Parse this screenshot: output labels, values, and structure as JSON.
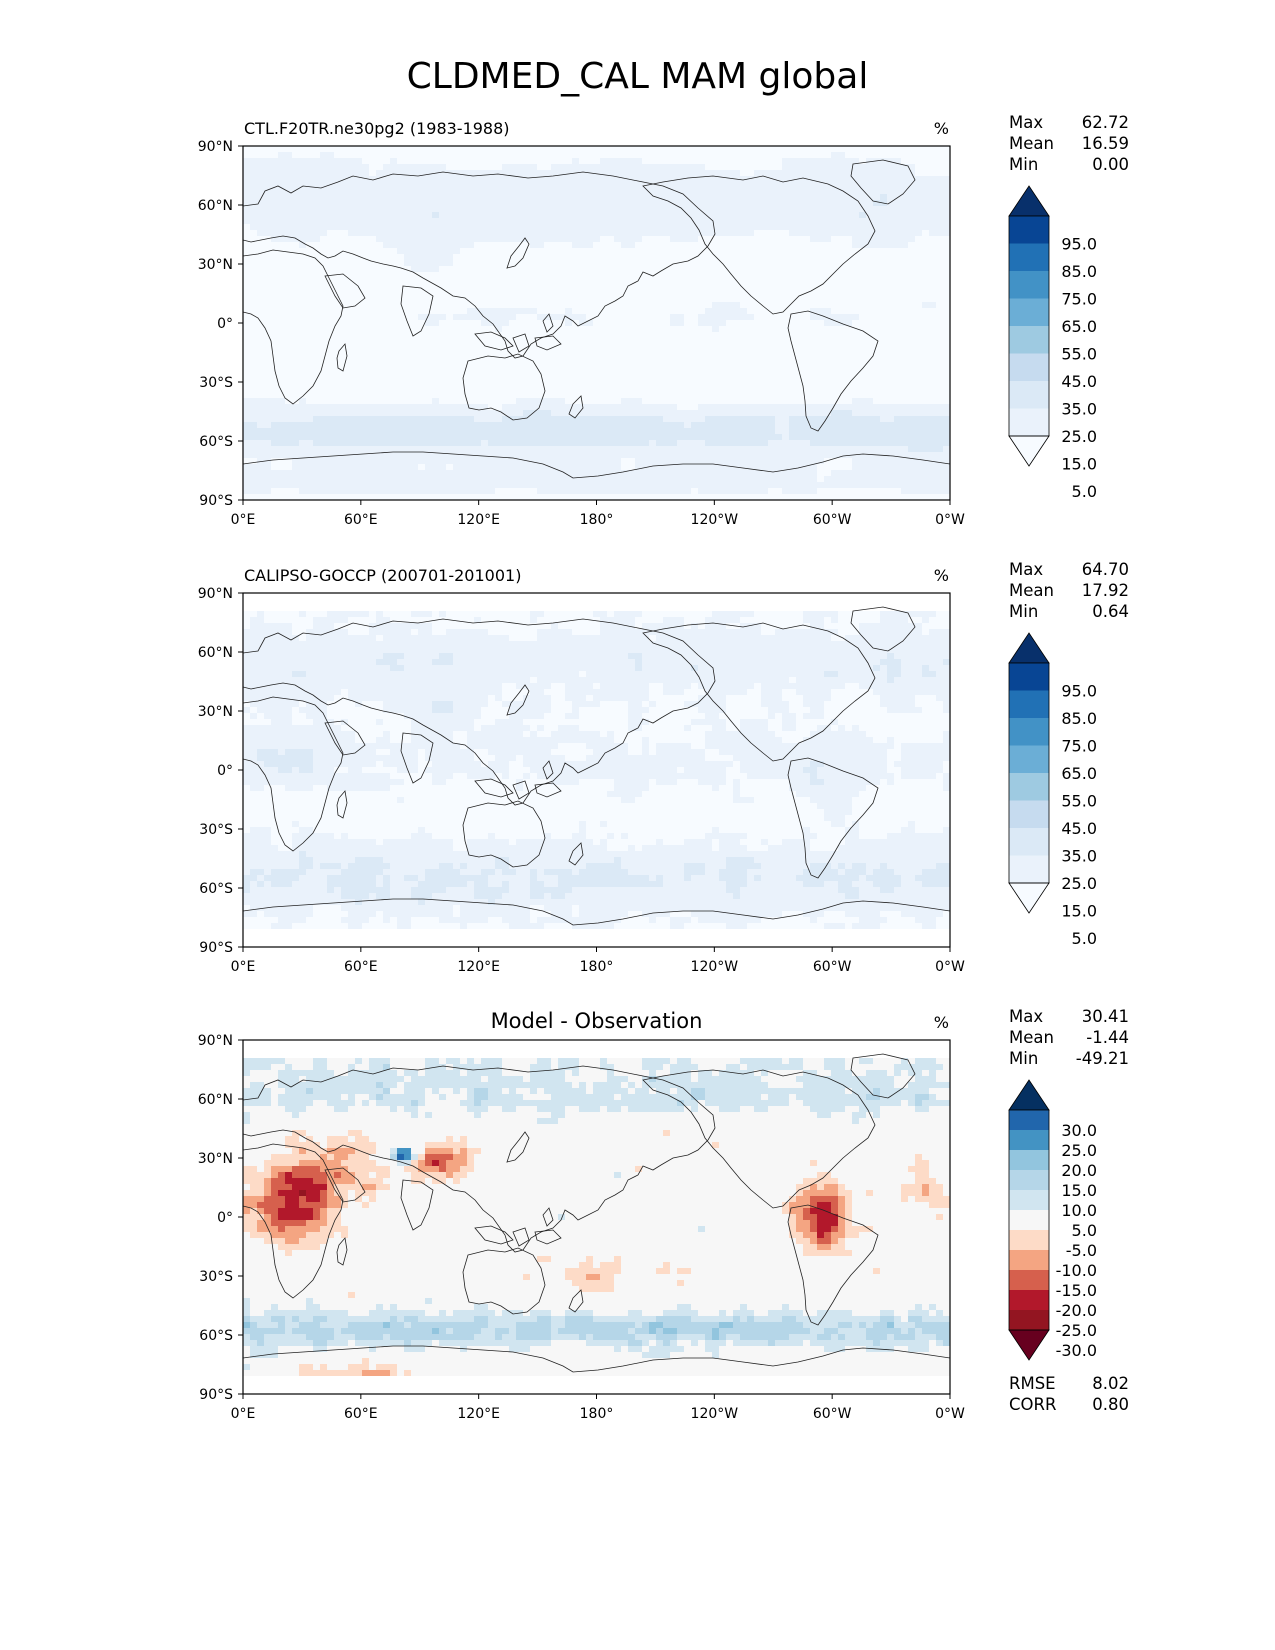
{
  "figure": {
    "title": "CLDMED_CAL MAM global"
  },
  "axes": {
    "lat_ticks": [
      "90°N",
      "60°N",
      "30°N",
      "0°",
      "30°S",
      "60°S",
      "90°S"
    ],
    "lon_ticks": [
      "0°E",
      "60°E",
      "120°E",
      "180°",
      "120°W",
      "60°W",
      "0°W"
    ]
  },
  "panels": [
    {
      "id": "model",
      "left_title": "CTL.F20TR.ne30pg2 (1983-1988)",
      "center_title": "",
      "units": "%",
      "stats": [
        {
          "label": "Max",
          "value": "62.72"
        },
        {
          "label": "Mean",
          "value": "16.59"
        },
        {
          "label": "Min",
          "value": "0.00"
        }
      ],
      "colorbar": {
        "labels": [
          "95.0",
          "85.0",
          "75.0",
          "65.0",
          "55.0",
          "45.0",
          "35.0",
          "25.0",
          "15.0",
          "5.0"
        ],
        "colors": [
          "#08306b",
          "#084594",
          "#2171b5",
          "#4292c6",
          "#6baed6",
          "#9ecae1",
          "#c6dbef",
          "#dbe9f6",
          "#eaf2fb",
          "#f7fbff"
        ]
      },
      "extra_stats": []
    },
    {
      "id": "obs",
      "left_title": "CALIPSO-GOCCP (200701-201001)",
      "center_title": "",
      "units": "%",
      "stats": [
        {
          "label": "Max",
          "value": "64.70"
        },
        {
          "label": "Mean",
          "value": "17.92"
        },
        {
          "label": "Min",
          "value": "0.64"
        }
      ],
      "colorbar": {
        "labels": [
          "95.0",
          "85.0",
          "75.0",
          "65.0",
          "55.0",
          "45.0",
          "35.0",
          "25.0",
          "15.0",
          "5.0"
        ],
        "colors": [
          "#08306b",
          "#084594",
          "#2171b5",
          "#4292c6",
          "#6baed6",
          "#9ecae1",
          "#c6dbef",
          "#dbe9f6",
          "#eaf2fb",
          "#f7fbff"
        ]
      },
      "extra_stats": []
    },
    {
      "id": "diff",
      "left_title": "",
      "center_title": "Model - Observation",
      "units": "%",
      "stats": [
        {
          "label": "Max",
          "value": "30.41"
        },
        {
          "label": "Mean",
          "value": "-1.44"
        },
        {
          "label": "Min",
          "value": "-49.21"
        }
      ],
      "colorbar": {
        "labels": [
          "30.0",
          "25.0",
          "20.0",
          "15.0",
          "10.0",
          "5.0",
          "-5.0",
          "-10.0",
          "-15.0",
          "-20.0",
          "-25.0",
          "-30.0"
        ],
        "colors": [
          "#053061",
          "#2166ac",
          "#4393c3",
          "#92c5de",
          "#b5d6e8",
          "#d1e5f0",
          "#f7f7f7",
          "#fddbc7",
          "#f4a582",
          "#d6604d",
          "#b2182b",
          "#931521",
          "#67001f"
        ]
      },
      "extra_stats": [
        {
          "label": "RMSE",
          "value": "8.02"
        },
        {
          "label": "CORR",
          "value": "0.80"
        }
      ]
    }
  ],
  "chart_data": [
    {
      "type": "heatmap",
      "title": "CTL.F20TR.ne30pg2 (1983-1988)",
      "units": "%",
      "lat_range": [
        -90,
        90
      ],
      "lon_range": [
        0,
        360
      ],
      "levels": [
        5,
        15,
        25,
        35,
        45,
        55,
        65,
        75,
        85,
        95
      ],
      "stats": {
        "max": 62.72,
        "mean": 16.59,
        "min": 0.0
      }
    },
    {
      "type": "heatmap",
      "title": "CALIPSO-GOCCP (200701-201001)",
      "units": "%",
      "lat_range": [
        -90,
        90
      ],
      "lon_range": [
        0,
        360
      ],
      "levels": [
        5,
        15,
        25,
        35,
        45,
        55,
        65,
        75,
        85,
        95
      ],
      "stats": {
        "max": 64.7,
        "mean": 17.92,
        "min": 0.64
      }
    },
    {
      "type": "heatmap",
      "title": "Model - Observation",
      "units": "%",
      "lat_range": [
        -90,
        90
      ],
      "lon_range": [
        0,
        360
      ],
      "levels": [
        -30,
        -25,
        -20,
        -15,
        -10,
        -5,
        5,
        10,
        15,
        20,
        25,
        30
      ],
      "stats": {
        "max": 30.41,
        "mean": -1.44,
        "min": -49.21,
        "rmse": 8.02,
        "corr": 0.8
      }
    }
  ]
}
